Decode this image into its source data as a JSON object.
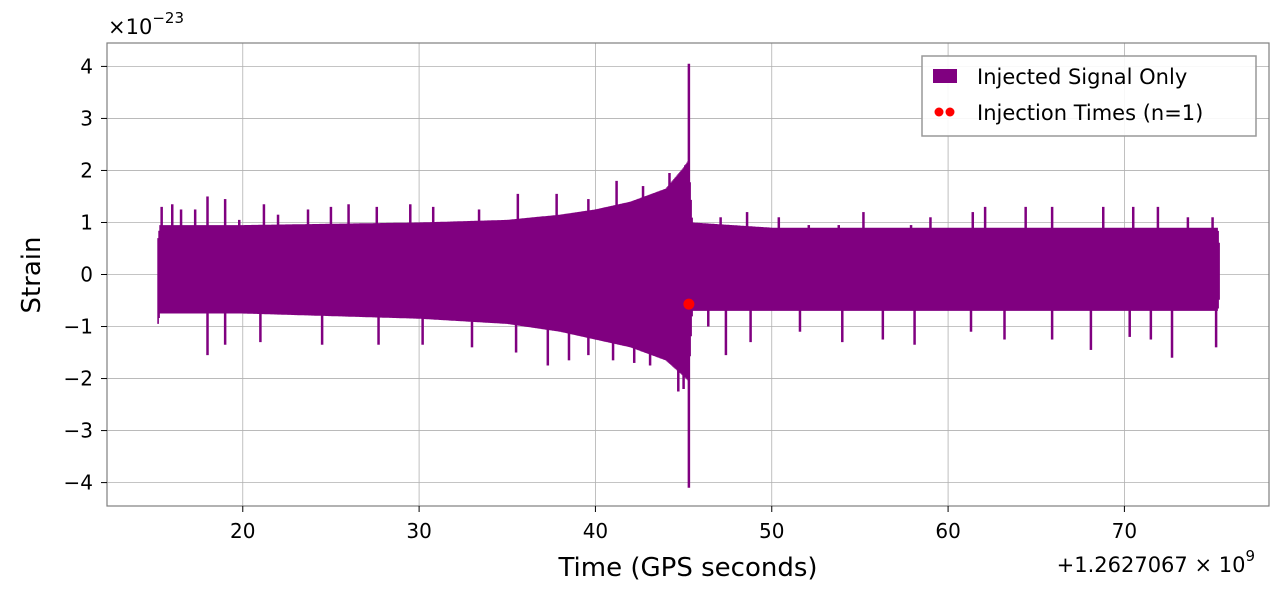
{
  "chart_data": {
    "type": "line",
    "xlabel": "Time (GPS seconds)",
    "ylabel": "Strain",
    "x_offset_label": "+1.2627067 × 10",
    "x_offset_exp": "9",
    "y_multiplier_label": "×10",
    "y_multiplier_exp": "−23",
    "xlim": [
      12.3,
      78.2
    ],
    "ylim": [
      -4.45,
      4.45
    ],
    "x_ticks": [
      20,
      30,
      40,
      50,
      60,
      70
    ],
    "x_tick_labels": [
      "20",
      "30",
      "40",
      "50",
      "60",
      "70"
    ],
    "y_ticks": [
      -4,
      -3,
      -2,
      -1,
      0,
      1,
      2,
      3,
      4
    ],
    "y_tick_labels": [
      "−4",
      "−3",
      "−2",
      "−1",
      "0",
      "1",
      "2",
      "3",
      "4"
    ],
    "grid": true,
    "legend_position": "top-right",
    "series": [
      {
        "name": "Injected Signal Only",
        "kind": "line",
        "color": "#800080",
        "x_start": 15.2,
        "x_end": 75.4,
        "band_upper": [
          {
            "x": 15.2,
            "y": 0.7
          },
          {
            "x": 15.3,
            "y": 0.95
          },
          {
            "x": 20,
            "y": 0.95
          },
          {
            "x": 30,
            "y": 1.0
          },
          {
            "x": 35,
            "y": 1.05
          },
          {
            "x": 38,
            "y": 1.15
          },
          {
            "x": 40,
            "y": 1.25
          },
          {
            "x": 42,
            "y": 1.4
          },
          {
            "x": 44,
            "y": 1.65
          },
          {
            "x": 45,
            "y": 2.05
          },
          {
            "x": 45.3,
            "y": 2.2
          },
          {
            "x": 45.5,
            "y": 1.0
          },
          {
            "x": 50,
            "y": 0.9
          },
          {
            "x": 60,
            "y": 0.9
          },
          {
            "x": 75.3,
            "y": 0.9
          },
          {
            "x": 75.4,
            "y": 0.5
          }
        ],
        "band_lower": [
          {
            "x": 15.2,
            "y": -0.95
          },
          {
            "x": 15.3,
            "y": -0.75
          },
          {
            "x": 20,
            "y": -0.75
          },
          {
            "x": 30,
            "y": -0.85
          },
          {
            "x": 35,
            "y": -0.95
          },
          {
            "x": 38,
            "y": -1.1
          },
          {
            "x": 40,
            "y": -1.25
          },
          {
            "x": 42,
            "y": -1.4
          },
          {
            "x": 44,
            "y": -1.65
          },
          {
            "x": 45,
            "y": -1.95
          },
          {
            "x": 45.3,
            "y": -2.05
          },
          {
            "x": 45.5,
            "y": -0.7
          },
          {
            "x": 50,
            "y": -0.7
          },
          {
            "x": 60,
            "y": -0.7
          },
          {
            "x": 75.3,
            "y": -0.7
          },
          {
            "x": 75.4,
            "y": -0.4
          }
        ],
        "spikes_up": [
          {
            "x": 15.4,
            "y": 1.3
          },
          {
            "x": 16.0,
            "y": 1.35
          },
          {
            "x": 16.5,
            "y": 1.25
          },
          {
            "x": 17.3,
            "y": 1.25
          },
          {
            "x": 18.0,
            "y": 1.5
          },
          {
            "x": 19.0,
            "y": 1.45
          },
          {
            "x": 19.8,
            "y": 1.05
          },
          {
            "x": 21.2,
            "y": 1.35
          },
          {
            "x": 22.0,
            "y": 1.15
          },
          {
            "x": 23.7,
            "y": 1.25
          },
          {
            "x": 25.0,
            "y": 1.3
          },
          {
            "x": 26.0,
            "y": 1.35
          },
          {
            "x": 27.6,
            "y": 1.3
          },
          {
            "x": 29.5,
            "y": 1.35
          },
          {
            "x": 30.8,
            "y": 1.3
          },
          {
            "x": 33.4,
            "y": 1.25
          },
          {
            "x": 35.6,
            "y": 1.55
          },
          {
            "x": 37.8,
            "y": 1.55
          },
          {
            "x": 39.6,
            "y": 1.45
          },
          {
            "x": 41.2,
            "y": 1.8
          },
          {
            "x": 42.7,
            "y": 1.7
          },
          {
            "x": 44.2,
            "y": 1.95
          },
          {
            "x": 45.1,
            "y": 2.1
          },
          {
            "x": 45.3,
            "y": 4.05
          },
          {
            "x": 47.1,
            "y": 1.1
          },
          {
            "x": 48.6,
            "y": 1.2
          },
          {
            "x": 50.4,
            "y": 1.1
          },
          {
            "x": 52.1,
            "y": 0.95
          },
          {
            "x": 53.8,
            "y": 0.95
          },
          {
            "x": 55.2,
            "y": 1.2
          },
          {
            "x": 57.9,
            "y": 0.95
          },
          {
            "x": 59.0,
            "y": 1.1
          },
          {
            "x": 61.4,
            "y": 1.2
          },
          {
            "x": 62.1,
            "y": 1.3
          },
          {
            "x": 64.4,
            "y": 1.3
          },
          {
            "x": 65.9,
            "y": 1.3
          },
          {
            "x": 68.8,
            "y": 1.3
          },
          {
            "x": 70.5,
            "y": 1.3
          },
          {
            "x": 71.9,
            "y": 1.3
          },
          {
            "x": 73.6,
            "y": 1.1
          },
          {
            "x": 75.0,
            "y": 1.1
          }
        ],
        "spikes_down": [
          {
            "x": 18.0,
            "y": -1.55
          },
          {
            "x": 19.0,
            "y": -1.35
          },
          {
            "x": 21.0,
            "y": -1.3
          },
          {
            "x": 24.5,
            "y": -1.35
          },
          {
            "x": 27.7,
            "y": -1.35
          },
          {
            "x": 30.2,
            "y": -1.35
          },
          {
            "x": 33.0,
            "y": -1.4
          },
          {
            "x": 35.5,
            "y": -1.5
          },
          {
            "x": 37.3,
            "y": -1.75
          },
          {
            "x": 38.5,
            "y": -1.65
          },
          {
            "x": 39.6,
            "y": -1.55
          },
          {
            "x": 41.0,
            "y": -1.65
          },
          {
            "x": 42.2,
            "y": -1.7
          },
          {
            "x": 43.1,
            "y": -1.75
          },
          {
            "x": 44.7,
            "y": -2.25
          },
          {
            "x": 45.0,
            "y": -2.2
          },
          {
            "x": 45.3,
            "y": -4.1
          },
          {
            "x": 46.4,
            "y": -1.0
          },
          {
            "x": 47.4,
            "y": -1.55
          },
          {
            "x": 48.8,
            "y": -1.3
          },
          {
            "x": 51.6,
            "y": -1.1
          },
          {
            "x": 54.0,
            "y": -1.3
          },
          {
            "x": 56.3,
            "y": -1.25
          },
          {
            "x": 58.1,
            "y": -1.35
          },
          {
            "x": 61.3,
            "y": -1.1
          },
          {
            "x": 63.2,
            "y": -1.25
          },
          {
            "x": 65.9,
            "y": -1.25
          },
          {
            "x": 68.1,
            "y": -1.45
          },
          {
            "x": 70.3,
            "y": -1.2
          },
          {
            "x": 71.5,
            "y": -1.25
          },
          {
            "x": 72.7,
            "y": -1.6
          },
          {
            "x": 75.2,
            "y": -1.4
          }
        ]
      },
      {
        "name": "Injection Times (n=1)",
        "kind": "scatter",
        "color": "#ff0000",
        "points": [
          {
            "x": 45.3,
            "y": -0.57
          }
        ]
      }
    ]
  }
}
